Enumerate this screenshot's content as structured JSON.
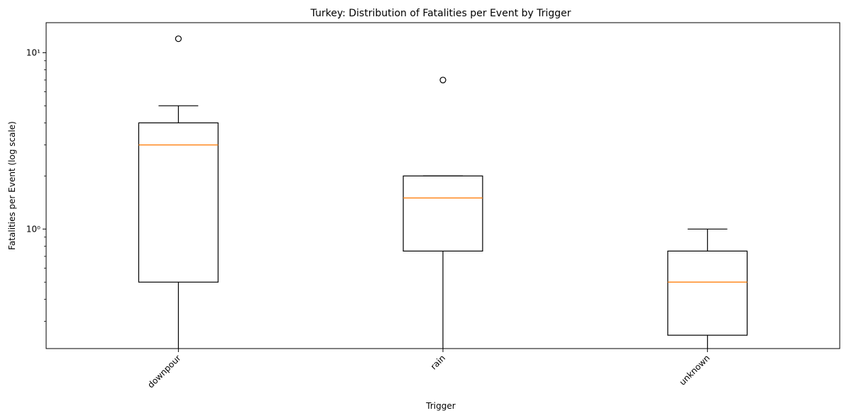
{
  "chart_data": {
    "type": "boxplot",
    "title": "Turkey: Distribution of Fatalities per Event by Trigger",
    "xlabel": "Trigger",
    "ylabel": "Fatalities per Event (log scale)",
    "yscale": "log",
    "ylim": [
      0.21,
      14.8
    ],
    "yticks": [
      {
        "value": 1,
        "label": "10⁰"
      },
      {
        "value": 10,
        "label": "10¹"
      }
    ],
    "grid": false,
    "categories": [
      "downpour",
      "rain",
      "unknown"
    ],
    "boxes": [
      {
        "category": "downpour",
        "whislo": 0.2,
        "q1": 0.5,
        "median": 3,
        "q3": 4,
        "whishi": 5,
        "fliers": [
          12
        ]
      },
      {
        "category": "rain",
        "whislo": 0.2,
        "q1": 0.75,
        "median": 1.5,
        "q3": 2,
        "whishi": 2,
        "fliers": [
          7
        ]
      },
      {
        "category": "unknown",
        "whislo": 0.2,
        "q1": 0.25,
        "median": 0.5,
        "q3": 0.75,
        "whishi": 1,
        "fliers": []
      }
    ],
    "colors": {
      "box": "#000000",
      "median": "#ff7f0e",
      "background": "#ffffff"
    }
  }
}
